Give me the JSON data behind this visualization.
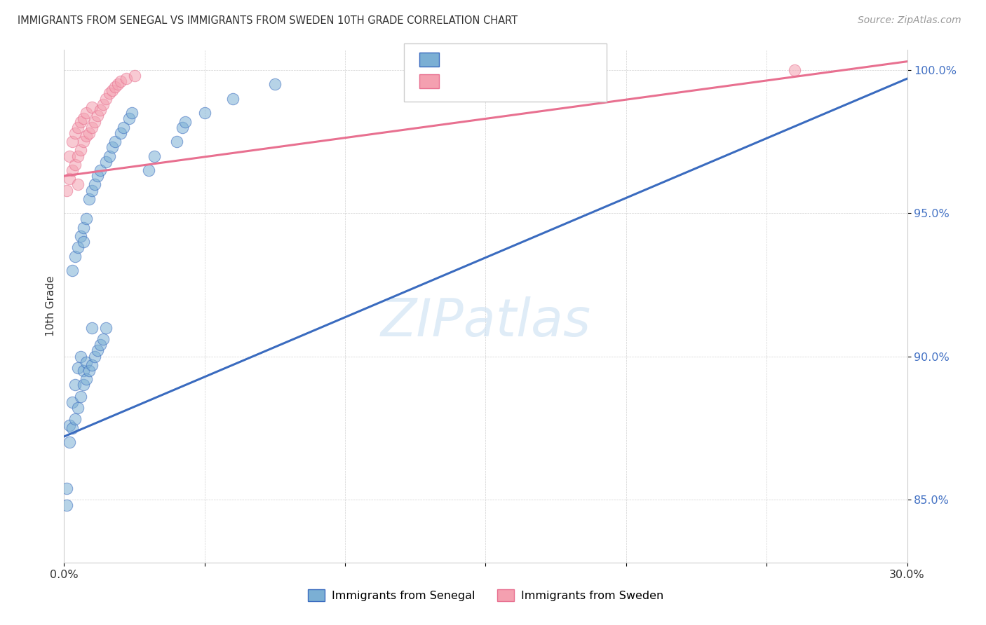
{
  "title": "IMMIGRANTS FROM SENEGAL VS IMMIGRANTS FROM SWEDEN 10TH GRADE CORRELATION CHART",
  "source": "Source: ZipAtlas.com",
  "ylabel_label": "10th Grade",
  "xmin": 0.0,
  "xmax": 0.3,
  "ymin": 0.828,
  "ymax": 1.007,
  "color_senegal": "#7bafd4",
  "color_sweden": "#f4a0b0",
  "color_line_senegal": "#3a6bbf",
  "color_line_sweden": "#e87090",
  "yticks": [
    0.85,
    0.9,
    0.95,
    1.0
  ],
  "ytick_labels": [
    "85.0%",
    "90.0%",
    "95.0%",
    "100.0%"
  ],
  "xtick_positions": [
    0.0,
    0.05,
    0.1,
    0.15,
    0.2,
    0.25,
    0.3
  ],
  "senegal_x": [
    0.001,
    0.001,
    0.002,
    0.002,
    0.003,
    0.003,
    0.003,
    0.004,
    0.004,
    0.004,
    0.005,
    0.005,
    0.005,
    0.006,
    0.006,
    0.006,
    0.007,
    0.007,
    0.007,
    0.007,
    0.008,
    0.008,
    0.008,
    0.009,
    0.009,
    0.01,
    0.01,
    0.01,
    0.011,
    0.011,
    0.012,
    0.012,
    0.013,
    0.013,
    0.014,
    0.015,
    0.015,
    0.016,
    0.017,
    0.018,
    0.02,
    0.021,
    0.023,
    0.024,
    0.03,
    0.032,
    0.04,
    0.042,
    0.043,
    0.05,
    0.06,
    0.075
  ],
  "senegal_y": [
    0.848,
    0.854,
    0.87,
    0.876,
    0.875,
    0.884,
    0.93,
    0.878,
    0.89,
    0.935,
    0.882,
    0.896,
    0.938,
    0.886,
    0.9,
    0.942,
    0.89,
    0.895,
    0.94,
    0.945,
    0.892,
    0.898,
    0.948,
    0.895,
    0.955,
    0.897,
    0.91,
    0.958,
    0.9,
    0.96,
    0.902,
    0.963,
    0.904,
    0.965,
    0.906,
    0.91,
    0.968,
    0.97,
    0.973,
    0.975,
    0.978,
    0.98,
    0.983,
    0.985,
    0.965,
    0.97,
    0.975,
    0.98,
    0.982,
    0.985,
    0.99,
    0.995
  ],
  "sweden_x": [
    0.001,
    0.002,
    0.002,
    0.003,
    0.003,
    0.004,
    0.004,
    0.005,
    0.005,
    0.006,
    0.006,
    0.007,
    0.007,
    0.008,
    0.008,
    0.009,
    0.01,
    0.01,
    0.011,
    0.012,
    0.013,
    0.014,
    0.015,
    0.016,
    0.017,
    0.018,
    0.019,
    0.02,
    0.022,
    0.025,
    0.26,
    0.005
  ],
  "sweden_y": [
    0.958,
    0.962,
    0.97,
    0.965,
    0.975,
    0.967,
    0.978,
    0.97,
    0.98,
    0.972,
    0.982,
    0.975,
    0.983,
    0.977,
    0.985,
    0.978,
    0.98,
    0.987,
    0.982,
    0.984,
    0.986,
    0.988,
    0.99,
    0.992,
    0.993,
    0.994,
    0.995,
    0.996,
    0.997,
    0.998,
    1.0,
    0.96
  ],
  "senegal_trendline_x": [
    0.0,
    0.3
  ],
  "senegal_trendline_y": [
    0.872,
    0.997
  ],
  "sweden_trendline_x": [
    0.0,
    0.3
  ],
  "sweden_trendline_y": [
    0.963,
    1.003
  ]
}
